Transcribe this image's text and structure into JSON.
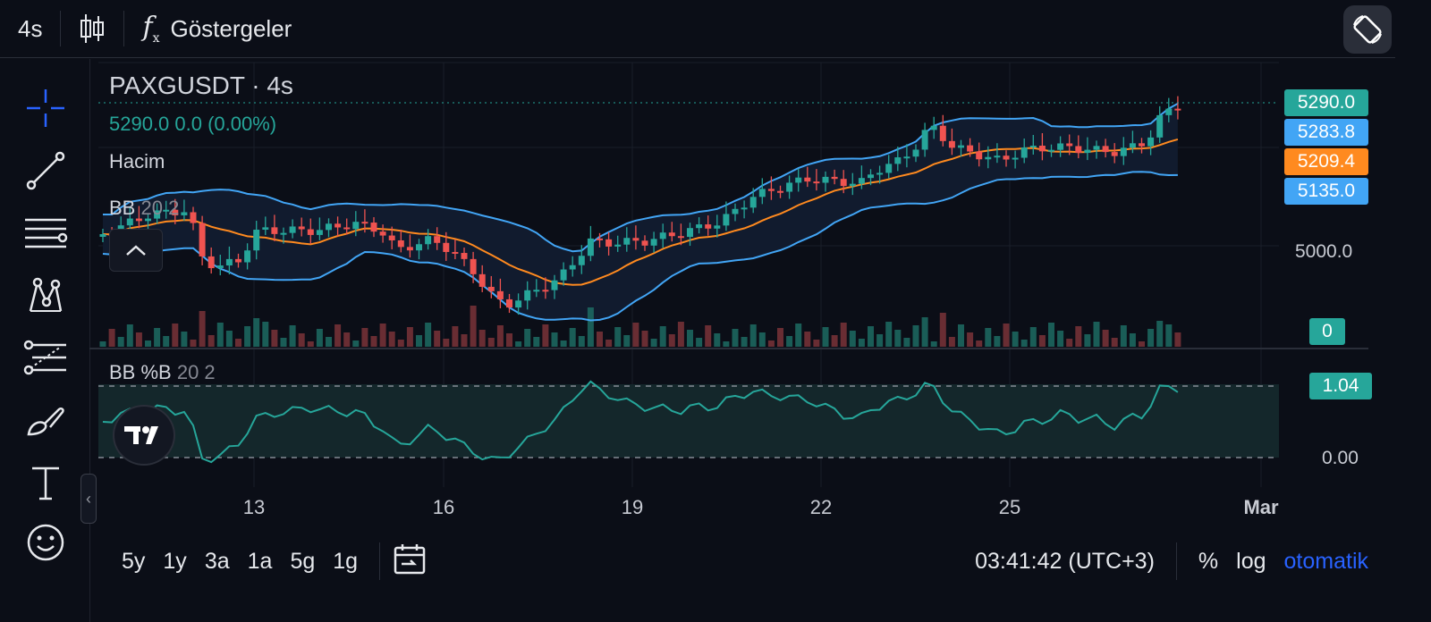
{
  "toolbar": {
    "interval": "4s",
    "indicators_label": "Göstergeler"
  },
  "legend": {
    "symbol": "PAXGUSDT · 4s",
    "ohlc": "5290.0  0.0 (0.00%)",
    "volume_label": "Hacim",
    "bb_name": "BB",
    "bb_params": "20 2",
    "pctb_name": "BB %B",
    "pctb_params": "20 2"
  },
  "price_axis": {
    "last": "5290.0",
    "bb_upper": "5283.8",
    "bb_basis": "5209.4",
    "bb_lower": "5135.0",
    "level": "5000.0",
    "volume": "0",
    "pctb_value": "1.04",
    "pctb_zero": "0.00"
  },
  "dates": [
    "13",
    "16",
    "19",
    "22",
    "25",
    "Mar"
  ],
  "timeframes": [
    "5y",
    "1y",
    "3a",
    "1a",
    "5g",
    "1g"
  ],
  "clock": "03:41:42 (UTC+3)",
  "scale_buttons": {
    "percent": "%",
    "log": "log",
    "auto": "otomatik"
  },
  "colors": {
    "up": "#26a69a",
    "down": "#ef5350",
    "bb_band": "#42a5f5",
    "bb_basis": "#ff8a1f",
    "auto_blue": "#2962ff",
    "pctb_line": "#26a69a"
  },
  "icons": [
    "crosshair-icon",
    "trendline-icon",
    "fib-icon",
    "pattern-icon",
    "prediction-icon",
    "brush-icon",
    "text-icon",
    "emoji-icon",
    "candles-icon",
    "fx-icon",
    "rotate-icon",
    "calendar-range-icon"
  ]
}
